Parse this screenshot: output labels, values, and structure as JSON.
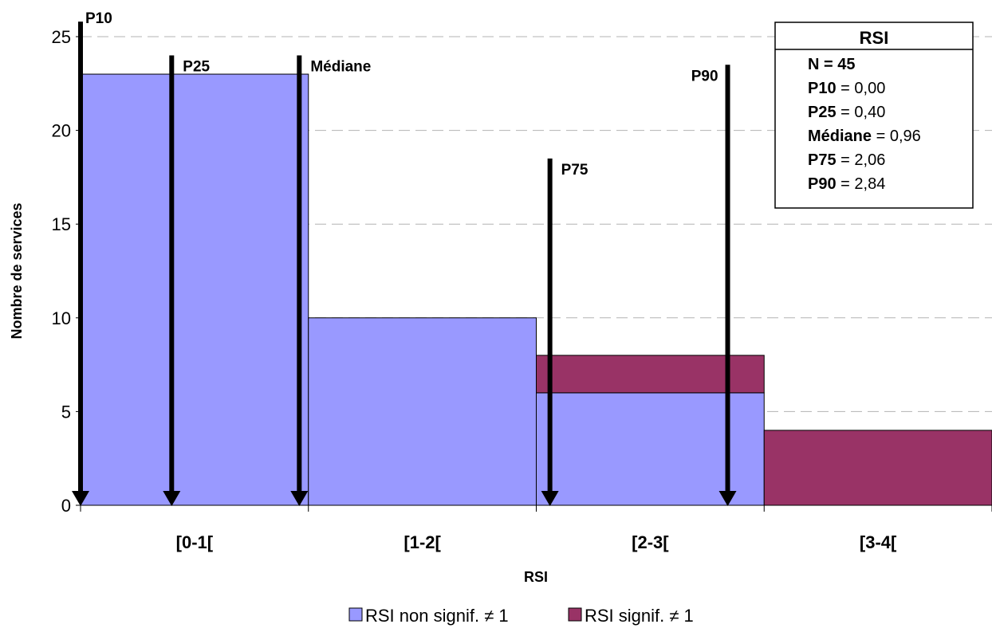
{
  "chart_data": {
    "type": "bar",
    "xlabel": "RSI",
    "ylabel": "Nombre de services",
    "ylim": [
      0,
      25
    ],
    "yticks": [
      0,
      5,
      10,
      15,
      20,
      25
    ],
    "grid": true,
    "categories": [
      "[0-1[",
      "[1-2[",
      "[2-3[",
      "[3-4["
    ],
    "stacked": true,
    "series": [
      {
        "name": "RSI non signif. ≠ 1",
        "color": "#9999ff",
        "values": [
          23,
          10,
          6,
          0
        ]
      },
      {
        "name": "RSI signif. ≠ 1",
        "color": "#993366",
        "values": [
          0,
          0,
          2,
          4
        ]
      }
    ],
    "percentiles": [
      {
        "label": "P10",
        "x": 0.0,
        "top": 25.8
      },
      {
        "label": "P25",
        "x": 0.4,
        "top": 24.0
      },
      {
        "label": "Médiane",
        "x": 0.96,
        "top": 24.0
      },
      {
        "label": "P75",
        "x": 2.06,
        "top": 18.5
      },
      {
        "label": "P90",
        "x": 2.84,
        "top": 23.5
      }
    ],
    "stats_box": {
      "title": "RSI",
      "lines": [
        {
          "key": "N = 45",
          "value": ""
        },
        {
          "key": "P10",
          "value": " = 0,00"
        },
        {
          "key": "P25",
          "value": " = 0,40"
        },
        {
          "key": "Médiane",
          "value": " = 0,96"
        },
        {
          "key": "P75",
          "value": " = 2,06"
        },
        {
          "key": "P90",
          "value": " = 2,84"
        }
      ]
    },
    "legend_position": "bottom"
  }
}
